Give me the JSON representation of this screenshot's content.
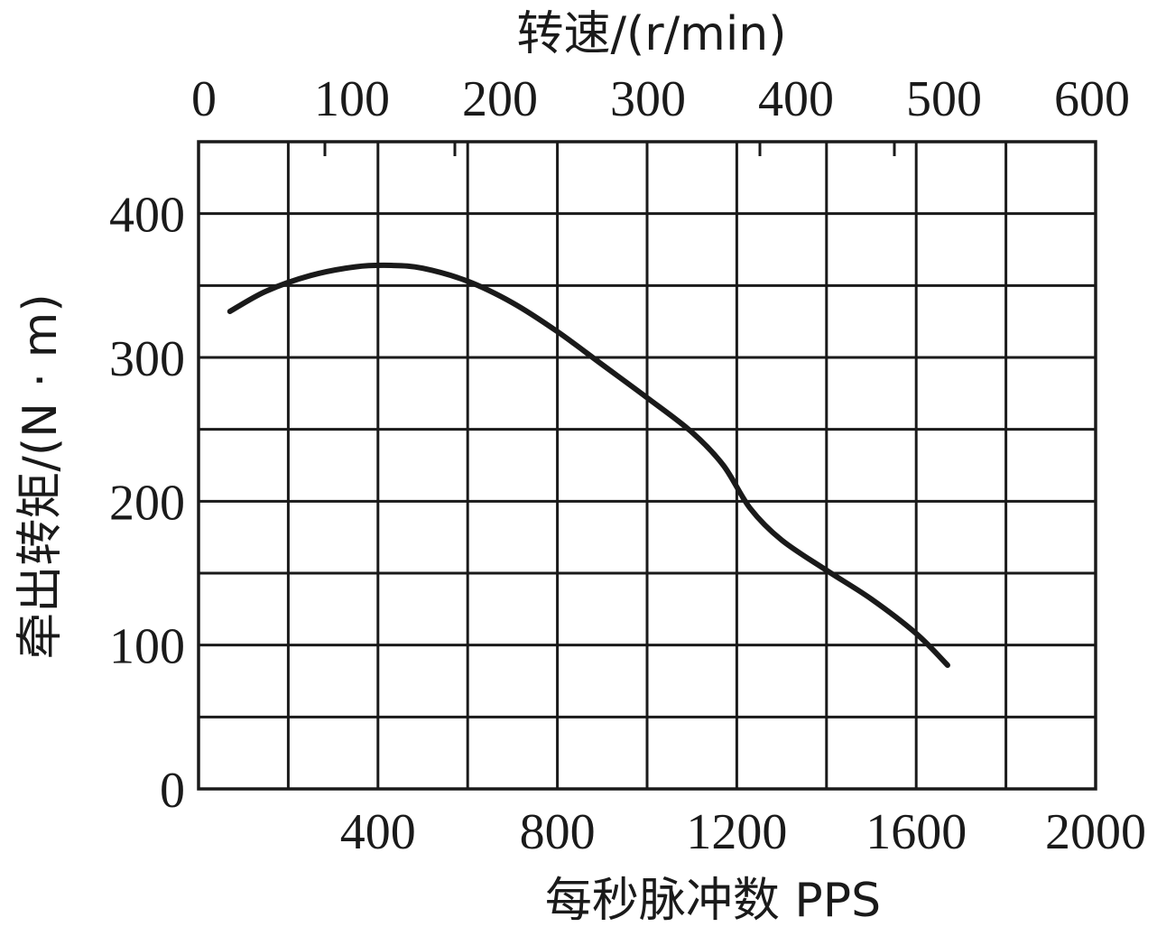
{
  "chart_data": {
    "type": "line",
    "xlabel": "每秒脉冲数 PPS",
    "x2label": "转速/(r/min)",
    "ylabel": "牵出转矩/(N · m)",
    "xlim": [
      0,
      2000
    ],
    "ylim": [
      0,
      450
    ],
    "x2lim": [
      0,
      600
    ],
    "x_ticks": [
      400,
      800,
      1200,
      1600,
      2000
    ],
    "x2_ticks": [
      0,
      100,
      200,
      300,
      400,
      500,
      600
    ],
    "x2_minor_marks": [
      100,
      200,
      400,
      500
    ],
    "y_ticks": [
      0,
      100,
      200,
      300,
      400
    ],
    "grid": true,
    "series": [
      {
        "values": [
          [
            70,
            332
          ],
          [
            150,
            346
          ],
          [
            250,
            357
          ],
          [
            350,
            363
          ],
          [
            430,
            364
          ],
          [
            500,
            362
          ],
          [
            600,
            353
          ],
          [
            700,
            338
          ],
          [
            800,
            318
          ],
          [
            900,
            295
          ],
          [
            1000,
            272
          ],
          [
            1100,
            248
          ],
          [
            1170,
            225
          ],
          [
            1230,
            195
          ],
          [
            1300,
            173
          ],
          [
            1400,
            152
          ],
          [
            1500,
            132
          ],
          [
            1600,
            108
          ],
          [
            1670,
            86
          ]
        ]
      }
    ]
  }
}
